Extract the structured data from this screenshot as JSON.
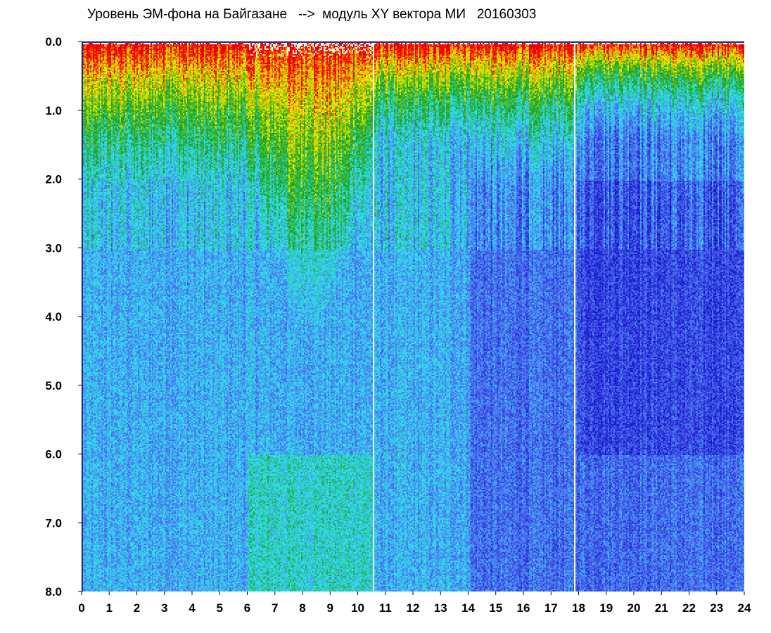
{
  "title": "Уровень ЭМ-фона на Байгазане   -->  модуль XY вектора МИ   20160303",
  "chart_data": {
    "type": "heatmap",
    "title": "Уровень ЭМ-фона на Байгазане   -->  модуль XY вектора МИ   20160303",
    "xlabel": "",
    "ylabel": "",
    "xlim": [
      0,
      24
    ],
    "ylim": [
      8.0,
      0.0
    ],
    "y_axis_direction": "down",
    "x_ticks": [
      "0",
      "1",
      "2",
      "3",
      "4",
      "5",
      "6",
      "7",
      "8",
      "9",
      "10",
      "11",
      "12",
      "13",
      "14",
      "15",
      "16",
      "17",
      "18",
      "19",
      "20",
      "21",
      "22",
      "23",
      "24"
    ],
    "y_ticks": [
      "0.0",
      "1.0",
      "2.0",
      "3.0",
      "4.0",
      "5.0",
      "6.0",
      "7.0",
      "8.0"
    ],
    "colormap": [
      "#1a1acc",
      "#4d6ef0",
      "#33e0f0",
      "#1aa01a",
      "#f0f000",
      "#f00000",
      "#ffffff"
    ],
    "gaps_x": [
      10.5,
      17.8
    ],
    "high_intensity_band": {
      "x_range": [
        0,
        24
      ],
      "peak_region_x": [
        6,
        10.5
      ],
      "depth_y_max": 3.8
    }
  }
}
